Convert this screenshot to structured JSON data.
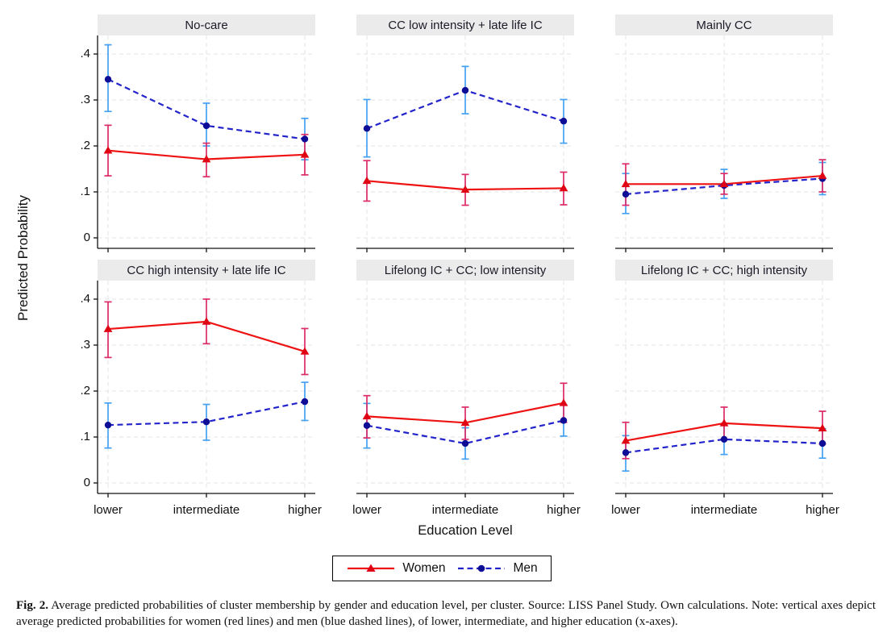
{
  "figure": {
    "y_axis_title": "Predicted Probability",
    "x_axis_title": "Education Level",
    "caption": {
      "label": "Fig. 2.",
      "text": "Average predicted probabilities of cluster membership by gender and education level, per cluster. Source: LISS Panel Study. Own calculations. Note: vertical axes depict average predicted probabilities for women (red lines) and men (blue dashed lines), of lower, intermediate, and higher education (x-axes)."
    }
  },
  "colors": {
    "women_line": "#ee1212",
    "women_marker": "#e00515",
    "women_ci": "#dd2a68",
    "men_line": "#2323cb",
    "men_marker": "#0d0d96",
    "men_ci": "#44a1f2",
    "grid": "#e3e3e3",
    "axis": "#111111",
    "strip_bg": "#ebebeb"
  },
  "chart_data": {
    "type": "line",
    "small_multiples": "2 rows x 3 columns",
    "categories": [
      "lower",
      "intermediate",
      "higher"
    ],
    "ytick_labels": [
      "0",
      ".1",
      ".2",
      ".3",
      ".4"
    ],
    "yticks": [
      0,
      0.1,
      0.2,
      0.3,
      0.4
    ],
    "ylim": [
      0,
      0.44
    ],
    "grid_on": true,
    "error_bars": true,
    "legend_position": "bottom-center",
    "series_meta": [
      {
        "key": "women",
        "label": "Women",
        "line": "solid",
        "marker": "triangle"
      },
      {
        "key": "men",
        "label": "Men",
        "line": "dashed",
        "marker": "circle"
      }
    ],
    "panels": [
      {
        "title": "No-care",
        "series": {
          "women": {
            "values": [
              0.19,
              0.171,
              0.181
            ],
            "ci_low": [
              0.135,
              0.133,
              0.137
            ],
            "ci_high": [
              0.245,
              0.206,
              0.225
            ]
          },
          "men": {
            "values": [
              0.345,
              0.244,
              0.215
            ],
            "ci_low": [
              0.275,
              0.2,
              0.17
            ],
            "ci_high": [
              0.42,
              0.293,
              0.26
            ]
          }
        }
      },
      {
        "title": "CC low intensity + late life IC",
        "series": {
          "women": {
            "values": [
              0.124,
              0.105,
              0.108
            ],
            "ci_low": [
              0.08,
              0.071,
              0.072
            ],
            "ci_high": [
              0.168,
              0.138,
              0.143
            ]
          },
          "men": {
            "values": [
              0.238,
              0.321,
              0.254
            ],
            "ci_low": [
              0.176,
              0.27,
              0.206
            ],
            "ci_high": [
              0.301,
              0.373,
              0.301
            ]
          }
        }
      },
      {
        "title": "Mainly CC",
        "series": {
          "women": {
            "values": [
              0.117,
              0.117,
              0.135
            ],
            "ci_low": [
              0.071,
              0.095,
              0.1
            ],
            "ci_high": [
              0.161,
              0.14,
              0.17
            ]
          },
          "men": {
            "values": [
              0.095,
              0.114,
              0.129
            ],
            "ci_low": [
              0.053,
              0.086,
              0.094
            ],
            "ci_high": [
              0.14,
              0.149,
              0.164
            ]
          }
        }
      },
      {
        "title": "CC high intensity + late life IC",
        "series": {
          "women": {
            "values": [
              0.335,
              0.351,
              0.286
            ],
            "ci_low": [
              0.273,
              0.303,
              0.236
            ],
            "ci_high": [
              0.394,
              0.4,
              0.336
            ]
          },
          "men": {
            "values": [
              0.126,
              0.133,
              0.177
            ],
            "ci_low": [
              0.076,
              0.093,
              0.136
            ],
            "ci_high": [
              0.174,
              0.171,
              0.219
            ]
          }
        }
      },
      {
        "title": "Lifelong IC + CC; low intensity",
        "series": {
          "women": {
            "values": [
              0.145,
              0.131,
              0.174
            ],
            "ci_low": [
              0.098,
              0.095,
              0.132
            ],
            "ci_high": [
              0.19,
              0.165,
              0.217
            ]
          },
          "men": {
            "values": [
              0.125,
              0.086,
              0.136
            ],
            "ci_low": [
              0.076,
              0.052,
              0.102
            ],
            "ci_high": [
              0.173,
              0.12,
              0.17
            ]
          }
        }
      },
      {
        "title": "Lifelong IC + CC; high intensity",
        "series": {
          "women": {
            "values": [
              0.092,
              0.13,
              0.119
            ],
            "ci_low": [
              0.053,
              0.095,
              0.085
            ],
            "ci_high": [
              0.132,
              0.165,
              0.156
            ]
          },
          "men": {
            "values": [
              0.066,
              0.095,
              0.086
            ],
            "ci_low": [
              0.026,
              0.062,
              0.054
            ],
            "ci_high": [
              0.103,
              0.128,
              0.118
            ]
          }
        }
      }
    ]
  }
}
